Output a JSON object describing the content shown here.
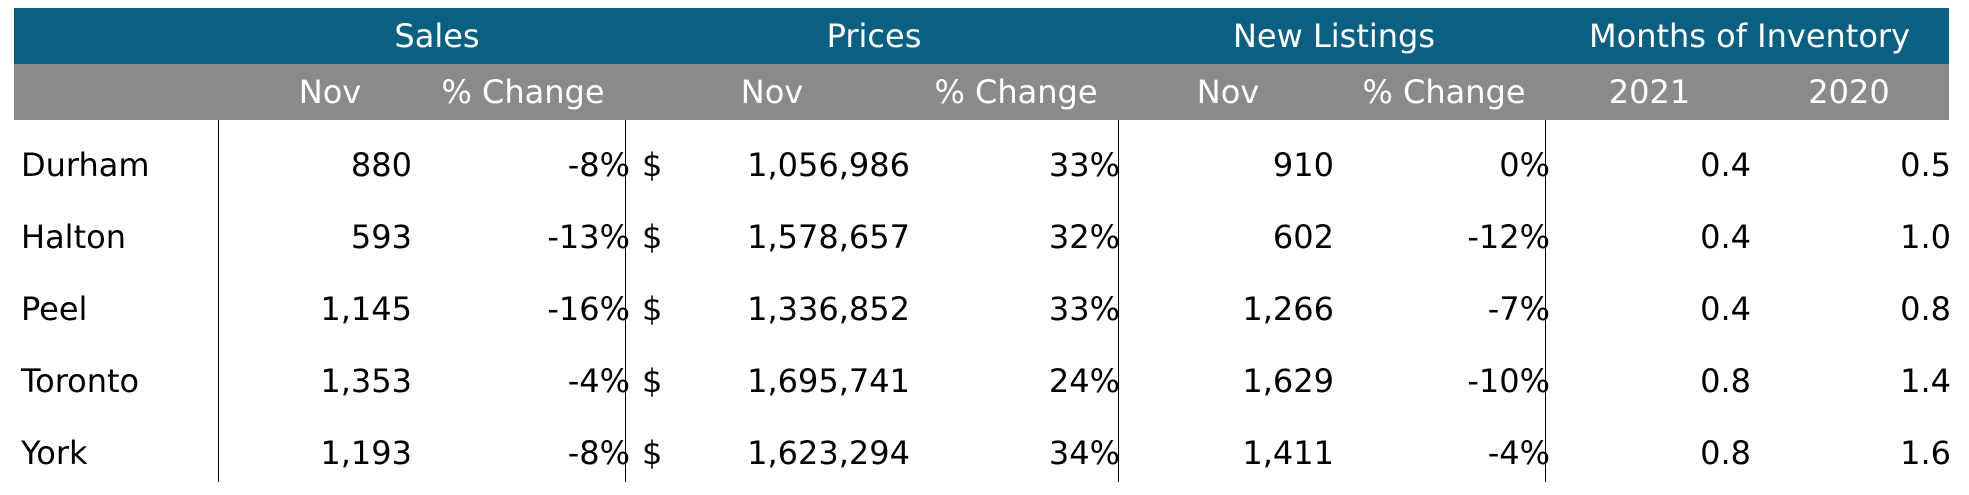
{
  "header": {
    "groups": {
      "sales": "Sales",
      "prices": "Prices",
      "new_listings": "New Listings",
      "months_of_inventory": "Months of Inventory"
    },
    "subheaders": {
      "sales_month": "Nov",
      "sales_change": "% Change",
      "prices_month": "Nov",
      "prices_change": "% Change",
      "listings_month": "Nov",
      "listings_change": "% Change",
      "inventory_year1": "2021",
      "inventory_year2": "2020"
    }
  },
  "currency_symbol": "$",
  "rows": [
    {
      "region": "Durham",
      "sales_nov": "880",
      "sales_change": "-8%",
      "price_nov": "1,056,986",
      "price_change": "33%",
      "listings_nov": "910",
      "listings_change": "0%",
      "inv_2021": "0.4",
      "inv_2020": "0.5"
    },
    {
      "region": "Halton",
      "sales_nov": "593",
      "sales_change": "-13%",
      "price_nov": "1,578,657",
      "price_change": "32%",
      "listings_nov": "602",
      "listings_change": "-12%",
      "inv_2021": "0.4",
      "inv_2020": "1.0"
    },
    {
      "region": "Peel",
      "sales_nov": "1,145",
      "sales_change": "-16%",
      "price_nov": "1,336,852",
      "price_change": "33%",
      "listings_nov": "1,266",
      "listings_change": "-7%",
      "inv_2021": "0.4",
      "inv_2020": "0.8"
    },
    {
      "region": "Toronto",
      "sales_nov": "1,353",
      "sales_change": "-4%",
      "price_nov": "1,695,741",
      "price_change": "24%",
      "listings_nov": "1,629",
      "listings_change": "-10%",
      "inv_2021": "0.8",
      "inv_2020": "1.4"
    },
    {
      "region": "York",
      "sales_nov": "1,193",
      "sales_change": "-8%",
      "price_nov": "1,623,294",
      "price_change": "34%",
      "listings_nov": "1,411",
      "listings_change": "-4%",
      "inv_2021": "0.8",
      "inv_2020": "1.6"
    }
  ],
  "colors": {
    "group_header_bg": "#0b5f80",
    "sub_header_bg": "#8a8a8a",
    "header_text": "#ffffff"
  }
}
